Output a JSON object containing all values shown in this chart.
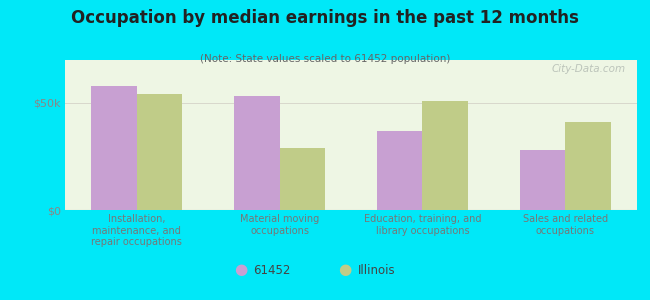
{
  "title": "Occupation by median earnings in the past 12 months",
  "subtitle": "(Note: State values scaled to 61452 population)",
  "categories": [
    "Installation,\nmaintenance, and\nrepair occupations",
    "Material moving\noccupations",
    "Education, training, and\nlibrary occupations",
    "Sales and related\noccupations"
  ],
  "values_61452": [
    58000,
    53000,
    37000,
    28000
  ],
  "values_illinois": [
    54000,
    29000,
    51000,
    41000
  ],
  "color_61452": "#c8a0d2",
  "color_illinois": "#c0cc88",
  "background_outer": "#00e8f8",
  "background_inner": "#eef6e4",
  "ylim": [
    0,
    70000
  ],
  "yticks": [
    0,
    50000
  ],
  "ytick_labels": [
    "$0",
    "$50k"
  ],
  "bar_width": 0.32,
  "legend_label_1": "61452",
  "legend_label_2": "Illinois",
  "watermark": "City-Data.com"
}
